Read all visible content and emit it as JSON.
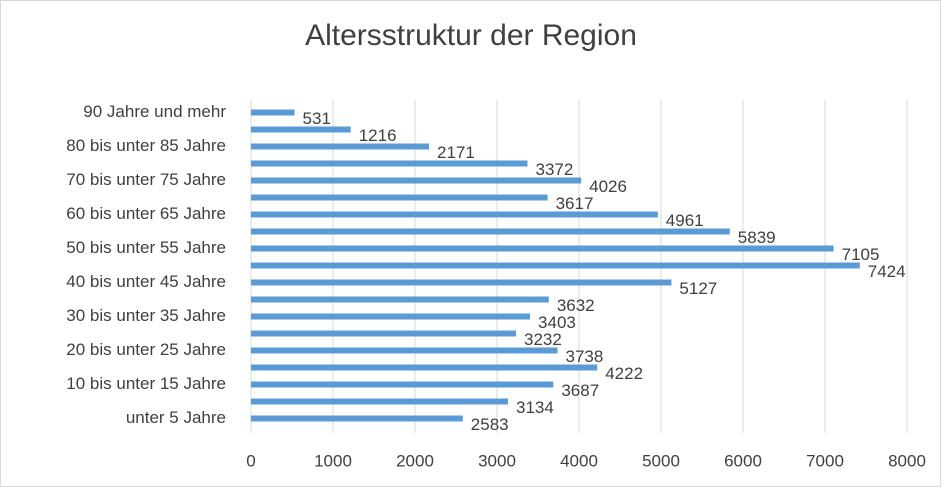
{
  "chart_data": {
    "type": "bar",
    "orientation": "horizontal",
    "title": "Altersstruktur der Region",
    "categories": [
      "unter 5 Jahre",
      null,
      "10 bis unter 15 Jahre",
      null,
      "20 bis unter 25 Jahre",
      null,
      "30 bis unter 35 Jahre",
      null,
      "40 bis unter 45 Jahre",
      null,
      "50 bis unter 55 Jahre",
      null,
      "60 bis unter 65 Jahre",
      null,
      "70 bis unter 75 Jahre",
      null,
      "80 bis unter 85 Jahre",
      null,
      "90 Jahre und mehr"
    ],
    "values": [
      2583,
      3134,
      3687,
      4222,
      3738,
      3232,
      3403,
      3632,
      5127,
      7424,
      7105,
      5839,
      4961,
      3617,
      4026,
      3372,
      2171,
      1216,
      531
    ],
    "color": "#5b9bd5",
    "xlim": [
      0,
      8000
    ],
    "xticks": [
      0,
      1000,
      2000,
      3000,
      4000,
      5000,
      6000,
      7000,
      8000
    ],
    "grid": true
  }
}
